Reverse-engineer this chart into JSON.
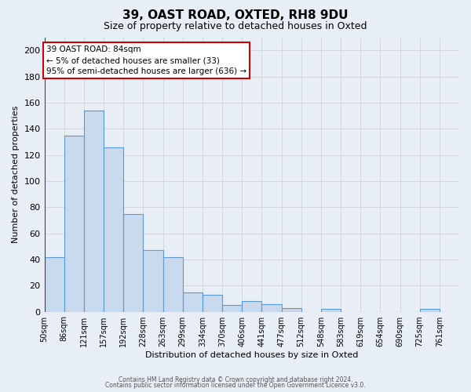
{
  "title1": "39, OAST ROAD, OXTED, RH8 9DU",
  "title2": "Size of property relative to detached houses in Oxted",
  "xlabel": "Distribution of detached houses by size in Oxted",
  "ylabel": "Number of detached properties",
  "bin_labels": [
    "50sqm",
    "86sqm",
    "121sqm",
    "157sqm",
    "192sqm",
    "228sqm",
    "263sqm",
    "299sqm",
    "334sqm",
    "370sqm",
    "406sqm",
    "441sqm",
    "477sqm",
    "512sqm",
    "548sqm",
    "583sqm",
    "619sqm",
    "654sqm",
    "690sqm",
    "725sqm",
    "761sqm"
  ],
  "bar_heights": [
    42,
    135,
    154,
    126,
    75,
    47,
    42,
    15,
    13,
    5,
    8,
    6,
    3,
    0,
    2,
    0,
    0,
    0,
    0,
    2,
    0
  ],
  "bar_color": "#c9d9ee",
  "bar_edge_color": "#5b9bd5",
  "ylim": [
    0,
    210
  ],
  "yticks": [
    0,
    20,
    40,
    60,
    80,
    100,
    120,
    140,
    160,
    180,
    200
  ],
  "annotation_title": "39 OAST ROAD: 84sqm",
  "annotation_line1": "← 5% of detached houses are smaller (33)",
  "annotation_line2": "95% of semi-detached houses are larger (636) →",
  "annotation_box_color": "#ffffff",
  "annotation_box_edge": "#cc0000",
  "red_line_bar_index": 0,
  "footer1": "Contains HM Land Registry data © Crown copyright and database right 2024.",
  "footer2": "Contains public sector information licensed under the Open Government Licence v3.0.",
  "grid_color": "#cccccc",
  "background_color": "#e8eef5"
}
